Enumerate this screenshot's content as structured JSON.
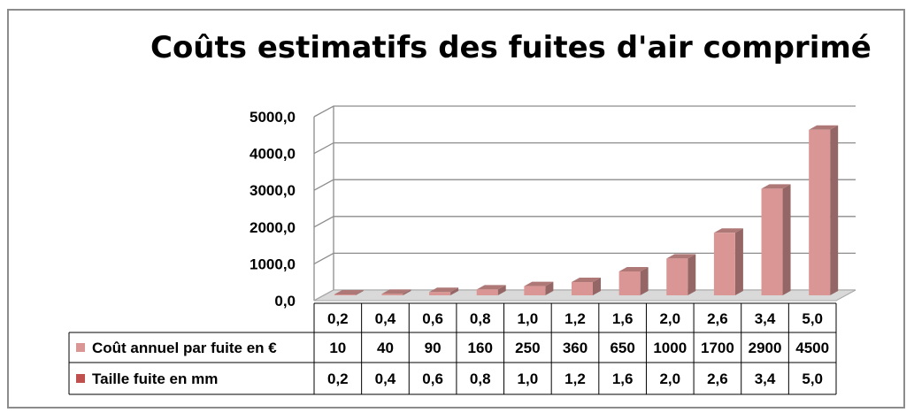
{
  "chart_data": {
    "type": "bar",
    "title": "Coûts estimatifs des fuites d'air comprimé",
    "categories": [
      "0,2",
      "0,4",
      "0,6",
      "0,8",
      "1,0",
      "1,2",
      "1,6",
      "2,0",
      "2,6",
      "3,4",
      "5,0"
    ],
    "yticks": [
      "0,0",
      "1000,0",
      "2000,0",
      "3000,0",
      "4000,0",
      "5000,0"
    ],
    "ylim": [
      0,
      5000
    ],
    "grid": true,
    "legend": "data-table-left",
    "series": [
      {
        "name": "Coût annuel par fuite en €",
        "values": [
          10,
          40,
          90,
          160,
          250,
          360,
          650,
          1000,
          1700,
          2900,
          4500
        ],
        "labels": [
          "10",
          "40",
          "90",
          "160",
          "250",
          "360",
          "650",
          "1000",
          "1700",
          "2900",
          "4500"
        ],
        "color": "#d99694"
      },
      {
        "name": "Taille fuite en mm",
        "values": [
          0.2,
          0.4,
          0.6,
          0.8,
          1.0,
          1.2,
          1.6,
          2.0,
          2.6,
          3.4,
          5.0
        ],
        "labels": [
          "0,2",
          "0,4",
          "0,6",
          "0,8",
          "1,0",
          "1,2",
          "1,6",
          "2,0",
          "2,6",
          "3,4",
          "5,0"
        ],
        "color": "#c0504d"
      }
    ]
  }
}
